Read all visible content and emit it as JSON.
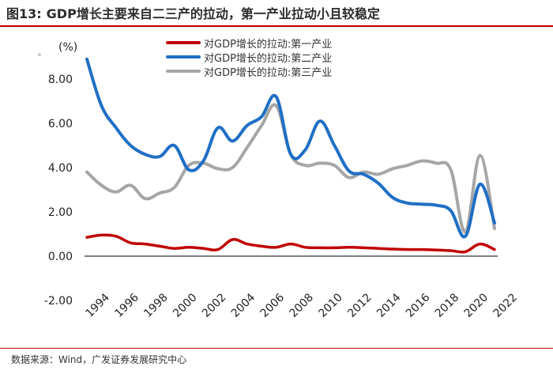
{
  "figure": {
    "number": "图13:",
    "title": "GDP增长主要来自二三产的拉动，第一产业拉动小且较稳定",
    "unit": "(%)",
    "dot": "。",
    "source": "数据来源：Wind，广发证券发展研究中心"
  },
  "chart_data": {
    "type": "line",
    "title": "GDP增长主要来自二三产的拉动，第一产业拉动小且较稳定",
    "ylabel": "(%)",
    "ylim": [
      -2.0,
      9.0
    ],
    "yticks": [
      "-2.00",
      "0.00",
      "2.00",
      "4.00",
      "6.00",
      "8.00"
    ],
    "ytick_values": [
      -2,
      0,
      2,
      4,
      6,
      8
    ],
    "xticks": [
      "1994",
      "1996",
      "1998",
      "2000",
      "2002",
      "2004",
      "2006",
      "2008",
      "2010",
      "2012",
      "2014",
      "2016",
      "2018",
      "2020",
      "2022"
    ],
    "xtick_values": [
      1994,
      1996,
      1998,
      2000,
      2002,
      2004,
      2006,
      2008,
      2010,
      2012,
      2014,
      2016,
      2018,
      2020,
      2022
    ],
    "x": [
      1994,
      1995,
      1996,
      1997,
      1998,
      1999,
      2000,
      2001,
      2002,
      2003,
      2004,
      2005,
      2006,
      2007,
      2008,
      2009,
      2010,
      2011,
      2012,
      2013,
      2014,
      2015,
      2016,
      2017,
      2018,
      2019,
      2020,
      2021,
      2022
    ],
    "series": [
      {
        "name": "对GDP增长的拉动:第一产业",
        "color": "#c00000",
        "values": [
          0.85,
          0.95,
          0.9,
          0.6,
          0.55,
          0.45,
          0.35,
          0.4,
          0.35,
          0.3,
          0.75,
          0.55,
          0.45,
          0.4,
          0.55,
          0.4,
          0.38,
          0.38,
          0.4,
          0.38,
          0.35,
          0.32,
          0.3,
          0.3,
          0.28,
          0.25,
          0.2,
          0.55,
          0.3
        ]
      },
      {
        "name": "对GDP增长的拉动:第二产业",
        "color": "#1f6fc5",
        "values": [
          8.9,
          6.8,
          5.8,
          5.0,
          4.6,
          4.5,
          5.0,
          3.9,
          4.3,
          5.8,
          5.2,
          5.9,
          6.3,
          7.2,
          4.6,
          4.8,
          6.1,
          5.0,
          3.85,
          3.7,
          3.3,
          2.65,
          2.4,
          2.35,
          2.3,
          2.05,
          0.9,
          3.25,
          1.5
        ]
      },
      {
        "name": "对GDP增长的拉动:第三产业",
        "color": "#a6a6a6",
        "values": [
          3.8,
          3.2,
          2.9,
          3.2,
          2.6,
          2.85,
          3.1,
          4.1,
          4.2,
          3.95,
          4.0,
          4.9,
          5.9,
          6.8,
          4.6,
          4.1,
          4.2,
          4.1,
          3.55,
          3.8,
          3.7,
          3.95,
          4.1,
          4.3,
          4.2,
          3.9,
          1.1,
          4.55,
          1.25
        ]
      }
    ],
    "legend": "top"
  }
}
